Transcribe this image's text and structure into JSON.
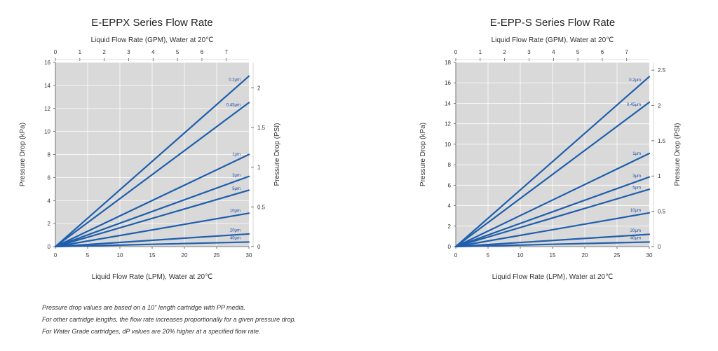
{
  "notes": [
    "Pressure drop values are based on a 10\" length cartridge with PP media.",
    "For other cartridge lengths, the flow rate increases proportionally for a given pressure drop.",
    "For Water Grade cartridges, dP values are 20% higher at a specified flow rate."
  ],
  "colors": {
    "plot_bg": "#d9d9d9",
    "line": "#1f5fad",
    "grid": "#ffffff",
    "label": "#1f4ea6"
  },
  "chart_data": [
    {
      "type": "line",
      "title": "E-EPPX Series Flow Rate",
      "xlabel": "Liquid Flow Rate (LPM), Water at 20℃",
      "x2label": "Liquid Flow Rate (GPM), Water at 20℃",
      "ylabel": "Pressure Drop (kPa)",
      "y2label": "Pressure Drop (PSI)",
      "xlim": [
        0,
        30
      ],
      "ylim": [
        0,
        16
      ],
      "x2lim": [
        0,
        7.925
      ],
      "y2lim": [
        0,
        2.32
      ],
      "xticks": [
        0,
        5,
        10,
        15,
        20,
        25,
        30
      ],
      "x2ticks": [
        0,
        1,
        2,
        3,
        4,
        5,
        6,
        7
      ],
      "yticks": [
        0,
        2,
        4,
        6,
        8,
        10,
        12,
        14,
        16
      ],
      "y2ticks": [
        0,
        0.5,
        1,
        1.5,
        2
      ],
      "grid": true,
      "series": [
        {
          "name": "0.2μm",
          "x": [
            0,
            30
          ],
          "y": [
            0,
            14.8
          ]
        },
        {
          "name": "0.45μm",
          "x": [
            0,
            30
          ],
          "y": [
            0,
            12.5
          ]
        },
        {
          "name": "1μm",
          "x": [
            0,
            30
          ],
          "y": [
            0,
            8.0
          ]
        },
        {
          "name": "3μm",
          "x": [
            0,
            30
          ],
          "y": [
            0,
            6.1
          ]
        },
        {
          "name": "5μm",
          "x": [
            0,
            30
          ],
          "y": [
            0,
            4.9
          ]
        },
        {
          "name": "10μm",
          "x": [
            0,
            30
          ],
          "y": [
            0,
            2.9
          ]
        },
        {
          "name": "20μm",
          "x": [
            0,
            30
          ],
          "y": [
            0,
            1.1
          ]
        },
        {
          "name": "40μm",
          "x": [
            0,
            30
          ],
          "y": [
            0,
            0.4
          ]
        }
      ]
    },
    {
      "type": "line",
      "title": "E-EPP-S Series Flow Rate",
      "xlabel": "Liquid Flow Rate (LPM), Water at 20℃",
      "x2label": "Liquid Flow Rate (GPM), Water at 20℃",
      "ylabel": "Pressure Drop (kPa)",
      "y2label": "Pressure Drop (PSI)",
      "xlim": [
        0,
        30
      ],
      "ylim": [
        0,
        18
      ],
      "x2lim": [
        0,
        7.925
      ],
      "y2lim": [
        0,
        2.61
      ],
      "xticks": [
        0,
        5,
        10,
        15,
        20,
        25,
        30
      ],
      "x2ticks": [
        0,
        1,
        2,
        3,
        4,
        5,
        6,
        7
      ],
      "yticks": [
        0,
        2,
        4,
        6,
        8,
        10,
        12,
        14,
        16,
        18
      ],
      "y2ticks": [
        0,
        0.5,
        1,
        1.5,
        2,
        2.5
      ],
      "grid": true,
      "series": [
        {
          "name": "0.2μm",
          "x": [
            0,
            30
          ],
          "y": [
            0,
            16.6
          ]
        },
        {
          "name": "0.45μm",
          "x": [
            0,
            30
          ],
          "y": [
            0,
            14.1
          ]
        },
        {
          "name": "1μm",
          "x": [
            0,
            30
          ],
          "y": [
            0,
            9.1
          ]
        },
        {
          "name": "3μm",
          "x": [
            0,
            30
          ],
          "y": [
            0,
            6.8
          ]
        },
        {
          "name": "5μm",
          "x": [
            0,
            30
          ],
          "y": [
            0,
            5.6
          ]
        },
        {
          "name": "10μm",
          "x": [
            0,
            30
          ],
          "y": [
            0,
            3.3
          ]
        },
        {
          "name": "20μm",
          "x": [
            0,
            30
          ],
          "y": [
            0,
            1.2
          ]
        },
        {
          "name": "40μm",
          "x": [
            0,
            30
          ],
          "y": [
            0,
            0.45
          ]
        }
      ]
    }
  ]
}
